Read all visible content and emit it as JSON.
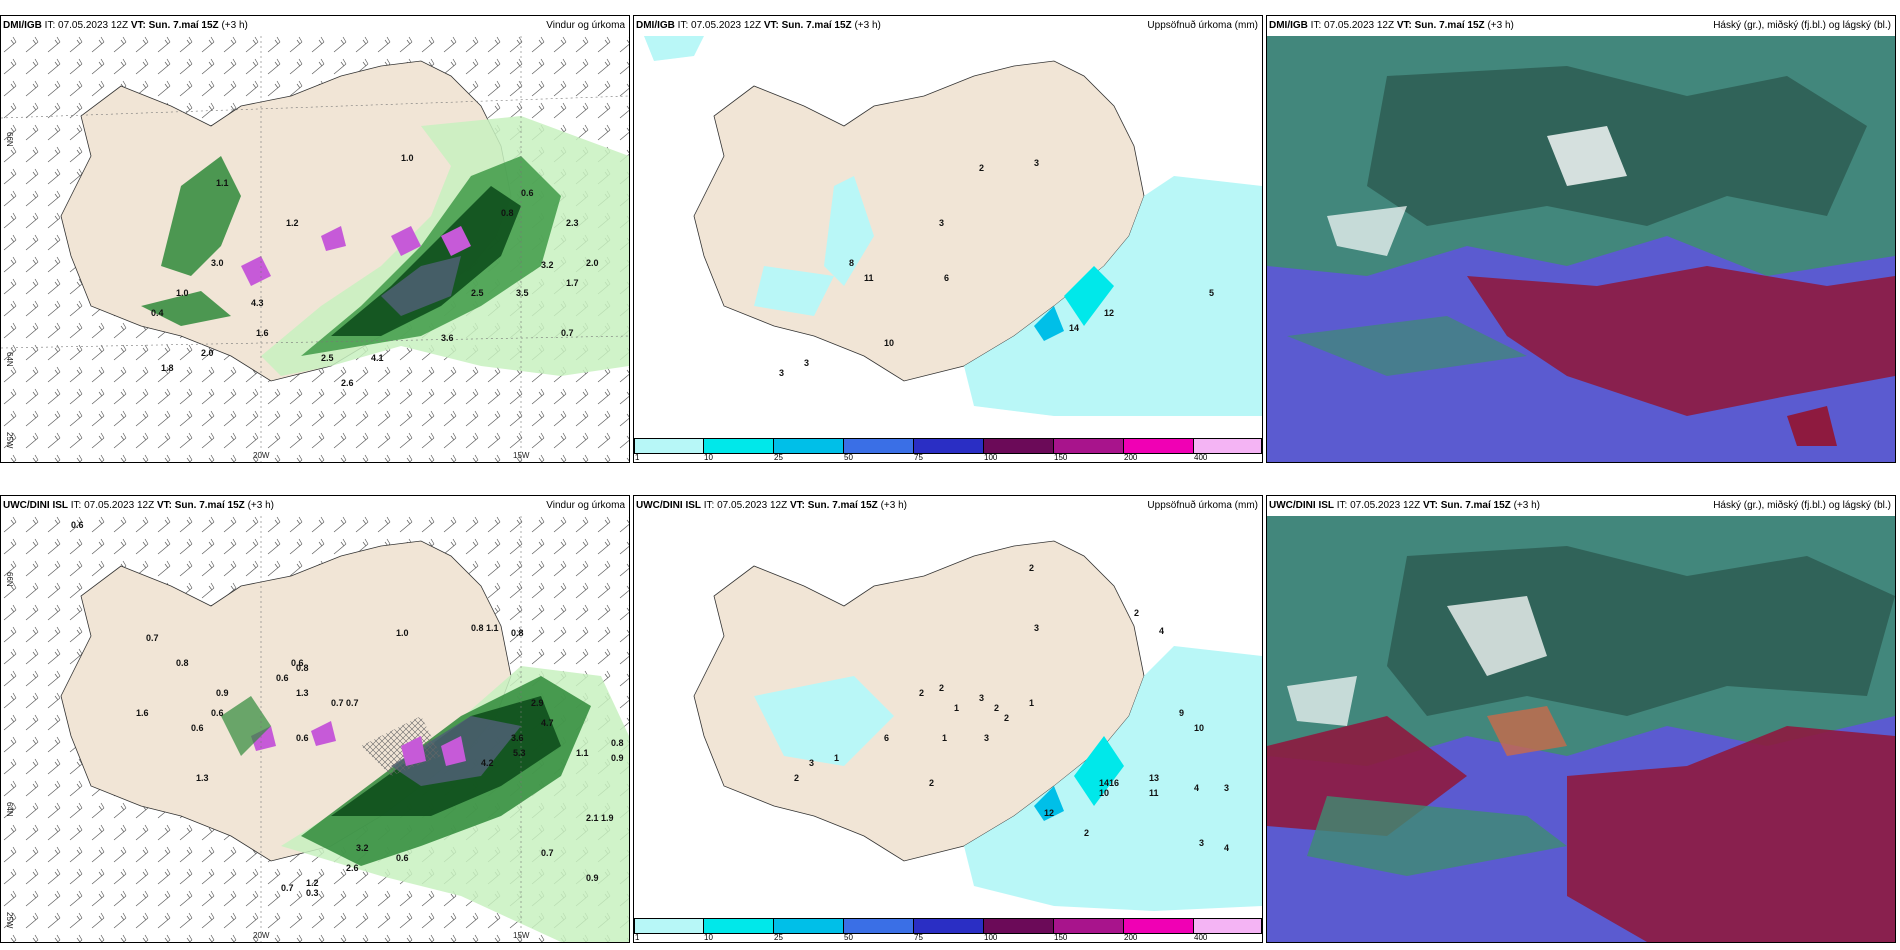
{
  "panels": [
    {
      "model": "DMI/IGB",
      "it_label": "IT:",
      "it_value": "07.05.2023 12Z",
      "vt_label": "VT:",
      "vt_value": "Sun. 7.maí 15Z",
      "lead": "(+3 h)",
      "title": "Vindur og úrkoma"
    },
    {
      "model": "DMI/IGB",
      "it_label": "IT:",
      "it_value": "07.05.2023 12Z",
      "vt_label": "VT:",
      "vt_value": "Sun. 7.maí 15Z",
      "lead": "(+3 h)",
      "title": "Uppsöfnuð úrkoma (mm)"
    },
    {
      "model": "DMI/IGB",
      "it_label": "IT:",
      "it_value": "07.05.2023 12Z",
      "vt_label": "VT:",
      "vt_value": "Sun. 7.maí 15Z",
      "lead": "(+3 h)",
      "title": "Háský (gr.), miðský (fj.bl.) og lágský (bl.)"
    },
    {
      "model": "UWC/DINI ISL",
      "it_label": "IT:",
      "it_value": "07.05.2023 12Z",
      "vt_label": "VT:",
      "vt_value": "Sun. 7.maí 15Z",
      "lead": "(+3 h)",
      "title": "Vindur og úrkoma"
    },
    {
      "model": "UWC/DINI ISL",
      "it_label": "IT:",
      "it_value": "07.05.2023 12Z",
      "vt_label": "VT:",
      "vt_value": "Sun. 7.maí 15Z",
      "lead": "(+3 h)",
      "title": "Uppsöfnuð úrkoma (mm)"
    },
    {
      "model": "UWC/DINI ISL",
      "it_label": "IT:",
      "it_value": "07.05.2023 12Z",
      "vt_label": "VT:",
      "vt_value": "Sun. 7.maí 15Z",
      "lead": "(+3 h)",
      "title": "Háský (gr.), miðský (fj.bl.) og lágský (bl.)"
    }
  ],
  "axis_labels": {
    "lon_20": "20W",
    "lon_15": "15W",
    "lat_66": "66N",
    "lat_64": "64N",
    "lon_25": "25W",
    "lat_65_right": "65N",
    "lat_64_right": "64N"
  },
  "colorbar": {
    "ticks": [
      "1",
      "10",
      "25",
      "50",
      "75",
      "100",
      "150",
      "200",
      "400"
    ],
    "colors": [
      "#b7f7f7",
      "#00e8ea",
      "#00bfe8",
      "#3a6fe6",
      "#2a2ec4",
      "#6b0a58",
      "#a8148c",
      "#f000b4",
      "#f4b4f4"
    ]
  },
  "wind_precip_top": [
    "1.0",
    "0.6",
    "0.8",
    "2.3",
    "2.0",
    "1.7",
    "3.2",
    "3.5",
    "2.5",
    "0.7",
    "1.1",
    "3.0",
    "1.2",
    "1.0",
    "0.4",
    "4.3",
    "1.6",
    "4.1",
    "2.5",
    "2.6",
    "2.0",
    "1.8",
    "3.6"
  ],
  "wind_precip_bottom": [
    "0.6",
    "0.8",
    "1.0",
    "0.8",
    "1.1",
    "0.6",
    "0.6",
    "0.7",
    "0.8",
    "0.9",
    "0.6",
    "0.8",
    "1.3",
    "0.7",
    "0.7",
    "0.6",
    "1.6",
    "0.6",
    "2.9",
    "3.6",
    "4.7",
    "5.3",
    "4.2",
    "2.1",
    "1.9",
    "1.1",
    "0.8",
    "0.9",
    "1.3",
    "0.7",
    "0.9",
    "0.6",
    "2.6",
    "3.2",
    "1.2",
    "0.3",
    "0.7"
  ],
  "accum_top": [
    "2",
    "3",
    "3",
    "8",
    "11",
    "6",
    "10",
    "3",
    "3",
    "14",
    "12",
    "5"
  ],
  "accum_bottom": [
    "2",
    "3",
    "2",
    "4",
    "3",
    "1",
    "2",
    "1",
    "2",
    "2",
    "6",
    "1",
    "2",
    "3",
    "2",
    "3",
    "1",
    "2",
    "14",
    "16",
    "13",
    "11",
    "10",
    "12",
    "2",
    "9",
    "10",
    "4",
    "3",
    "3",
    "4"
  ],
  "colors": {
    "land": "#f1e5d6",
    "sea": "#ffffff",
    "green_light": "#c8f1c0",
    "green_dark": "#0e4f1c",
    "purple": "#c65ad8",
    "cyan_light": "#b9f7f7",
    "cloud_blue": "#5b5bd0",
    "cloud_red": "#8e1a3f",
    "cloud_green": "#3f8c72"
  }
}
